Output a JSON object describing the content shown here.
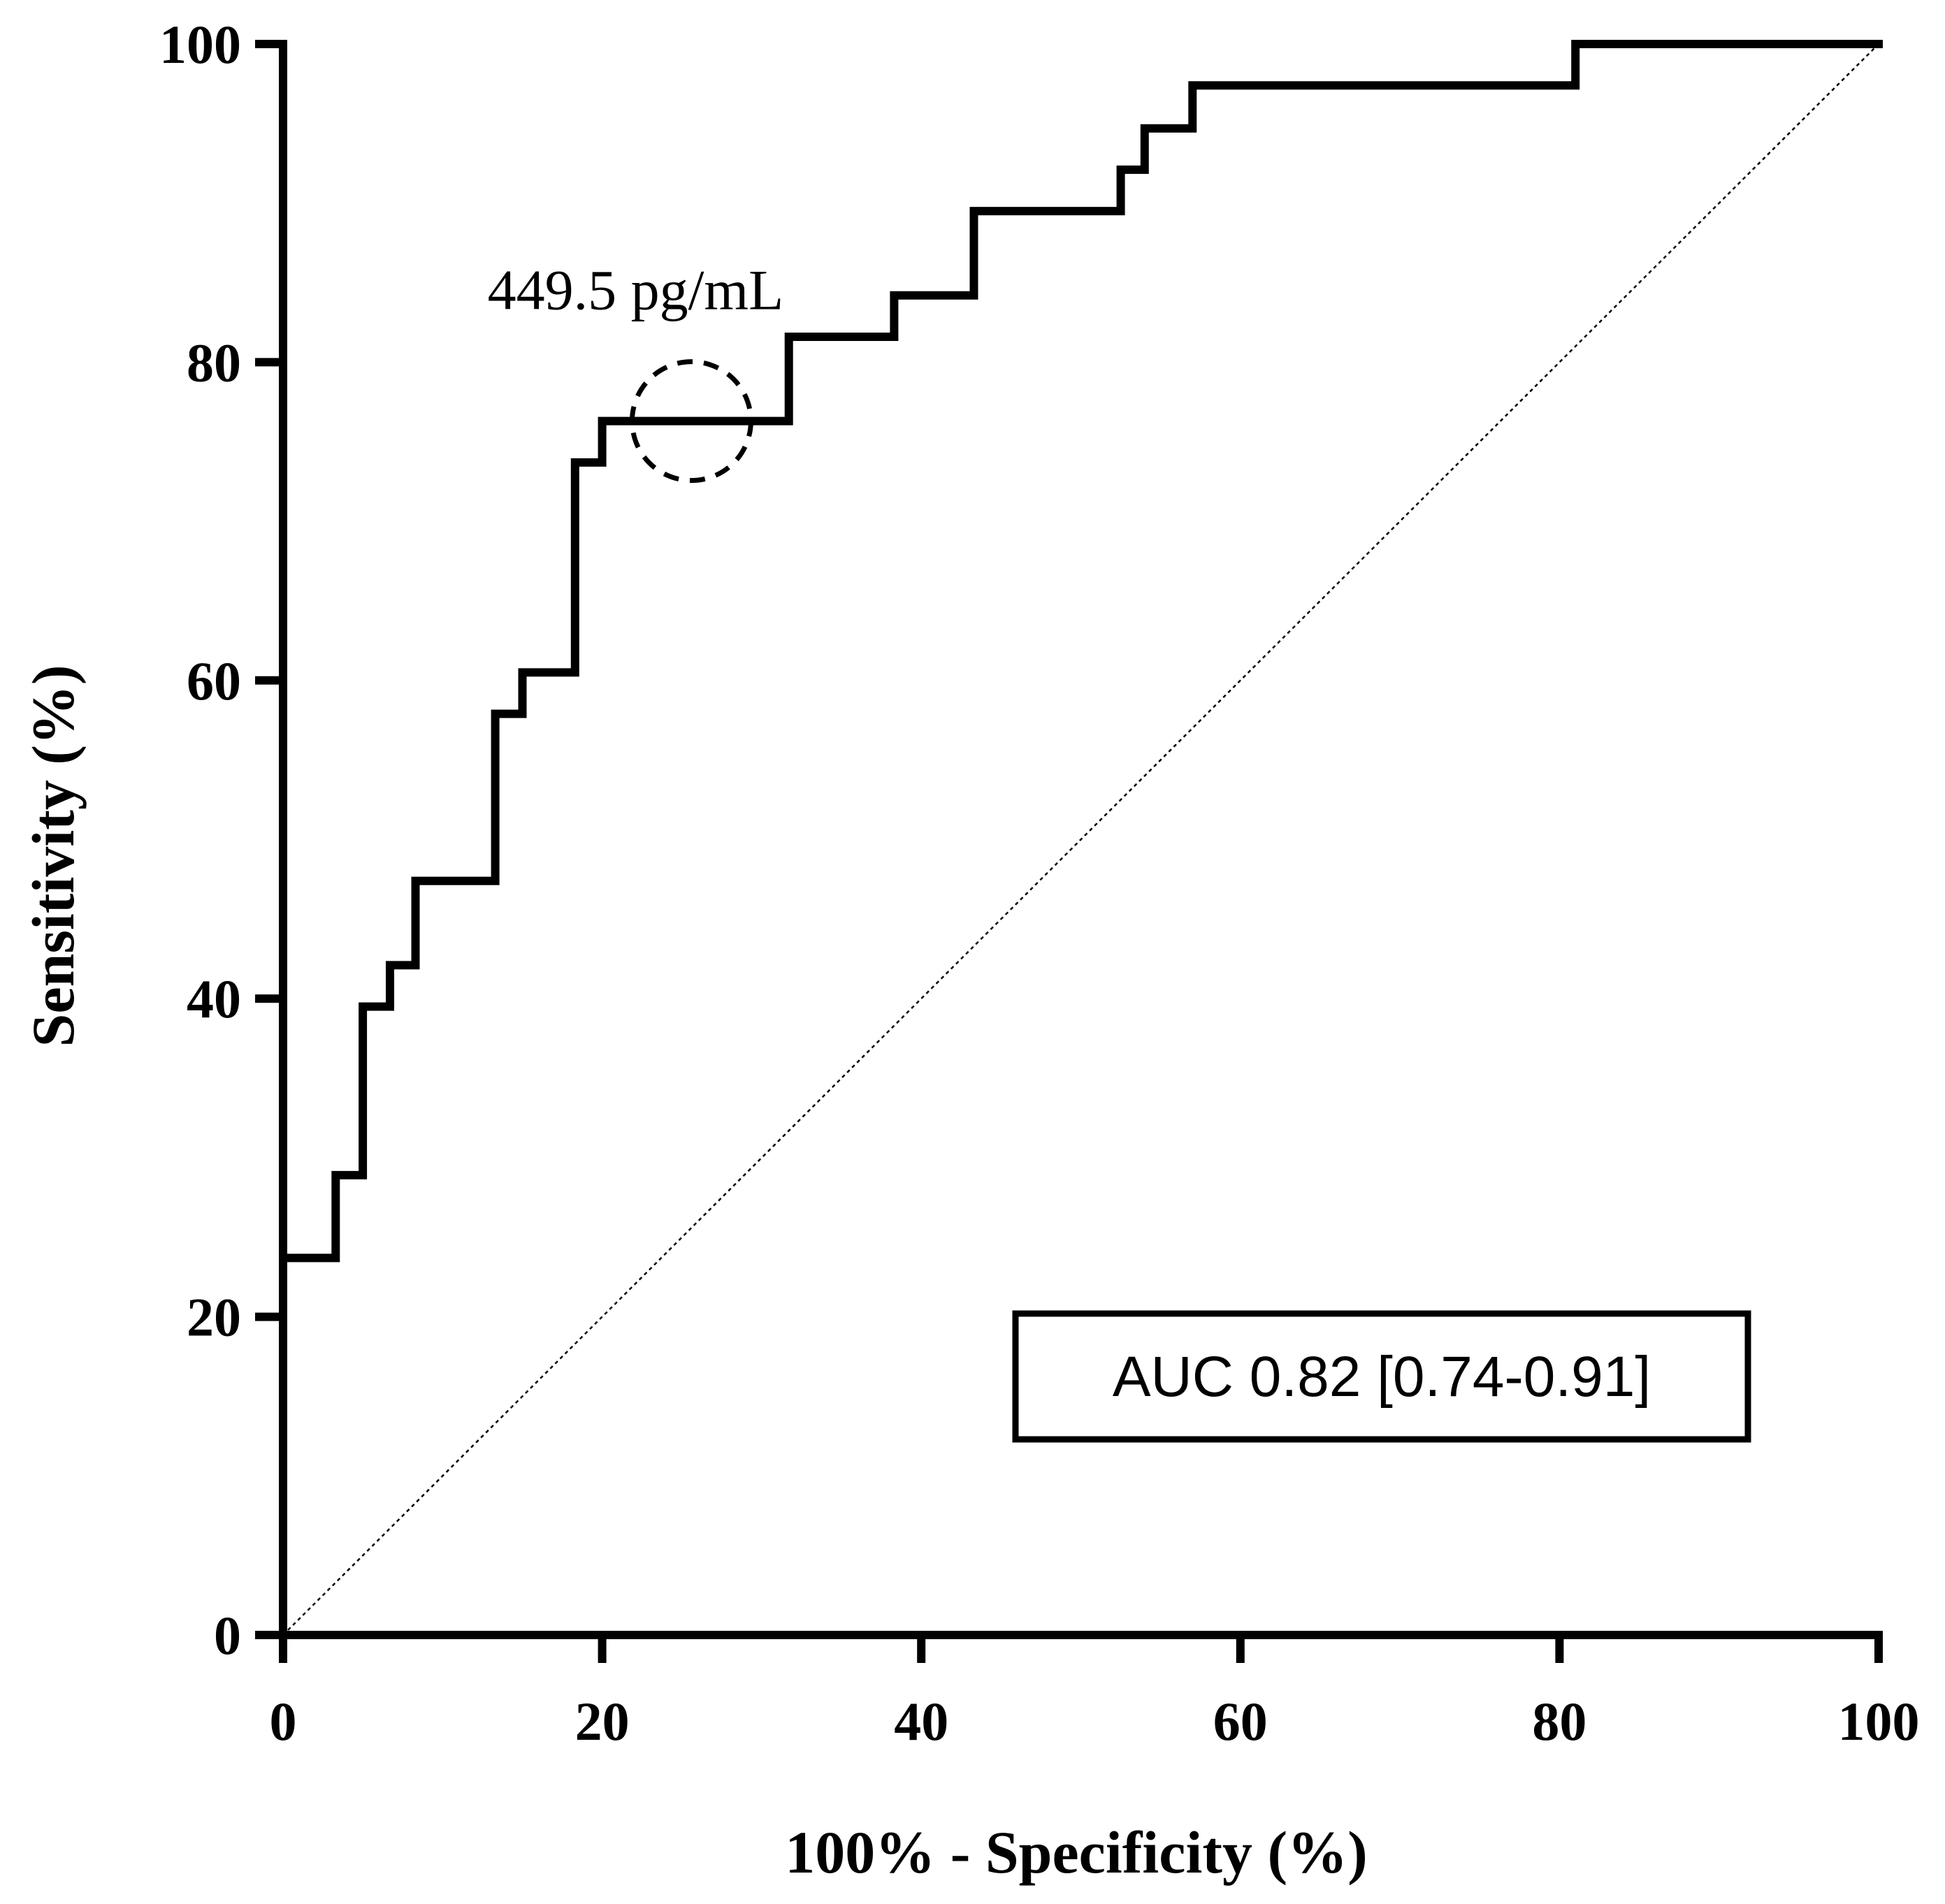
{
  "chart_data": {
    "type": "line",
    "title": "",
    "xlabel": "100% - Specificity (%)",
    "ylabel": "Sensitivity (%)",
    "xlim": [
      0,
      100
    ],
    "ylim": [
      0,
      100
    ],
    "xticks": [
      "0",
      "20",
      "40",
      "60",
      "80",
      "100"
    ],
    "yticks": [
      "0",
      "20",
      "40",
      "60",
      "80",
      "100"
    ],
    "grid": false,
    "series": [
      {
        "name": "ROC curve",
        "style": "solid",
        "color": "#000000",
        "x": [
          0,
          0,
          3.3,
          3.3,
          5,
          5,
          6.7,
          6.7,
          8.3,
          8.3,
          13.3,
          13.3,
          15,
          15,
          18.3,
          18.3,
          20,
          20,
          31.7,
          31.7,
          38.3,
          38.3,
          43.3,
          43.3,
          52.5,
          52.5,
          54,
          54,
          57,
          57,
          81,
          81,
          100
        ],
        "y": [
          0,
          23.7,
          23.7,
          28.9,
          28.9,
          39.5,
          39.5,
          42.1,
          42.1,
          47.4,
          47.4,
          57.9,
          57.9,
          60.5,
          60.5,
          73.7,
          73.7,
          76.3,
          76.3,
          81.6,
          81.6,
          84.2,
          84.2,
          89.5,
          89.5,
          92.1,
          92.1,
          94.7,
          94.7,
          97.4,
          97.4,
          100,
          100
        ]
      },
      {
        "name": "Reference line",
        "style": "dotted",
        "color": "#000000",
        "x": [
          0,
          100
        ],
        "y": [
          0,
          100
        ]
      }
    ],
    "annotations": [
      {
        "text": "449.5 pg/mL",
        "x": 25.6,
        "y": 76.3,
        "marker": "dashed-circle"
      },
      {
        "text": "AUC 0.82 [0.74-0.91]",
        "position": "lower-right",
        "boxed": true
      }
    ]
  }
}
